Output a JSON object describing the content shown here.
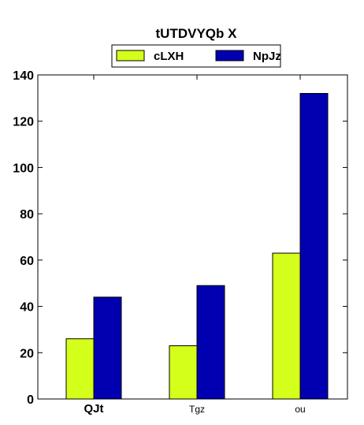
{
  "chart_data": {
    "type": "bar",
    "title": "tUTDVYQb X",
    "xlabel": "",
    "ylabel": "",
    "categories": [
      "QJt",
      "Tgz",
      "ou"
    ],
    "series": [
      {
        "name": "cLXH",
        "color": "#d4ff1a",
        "values": [
          26,
          23,
          63
        ]
      },
      {
        "name": "NpJz",
        "color": "#0000b0",
        "values": [
          44,
          49,
          132
        ]
      }
    ],
    "ylim": [
      0,
      140
    ],
    "yticks": [
      0,
      20,
      40,
      60,
      80,
      100,
      120,
      140
    ],
    "grid": false,
    "legend_position": "top-center"
  }
}
